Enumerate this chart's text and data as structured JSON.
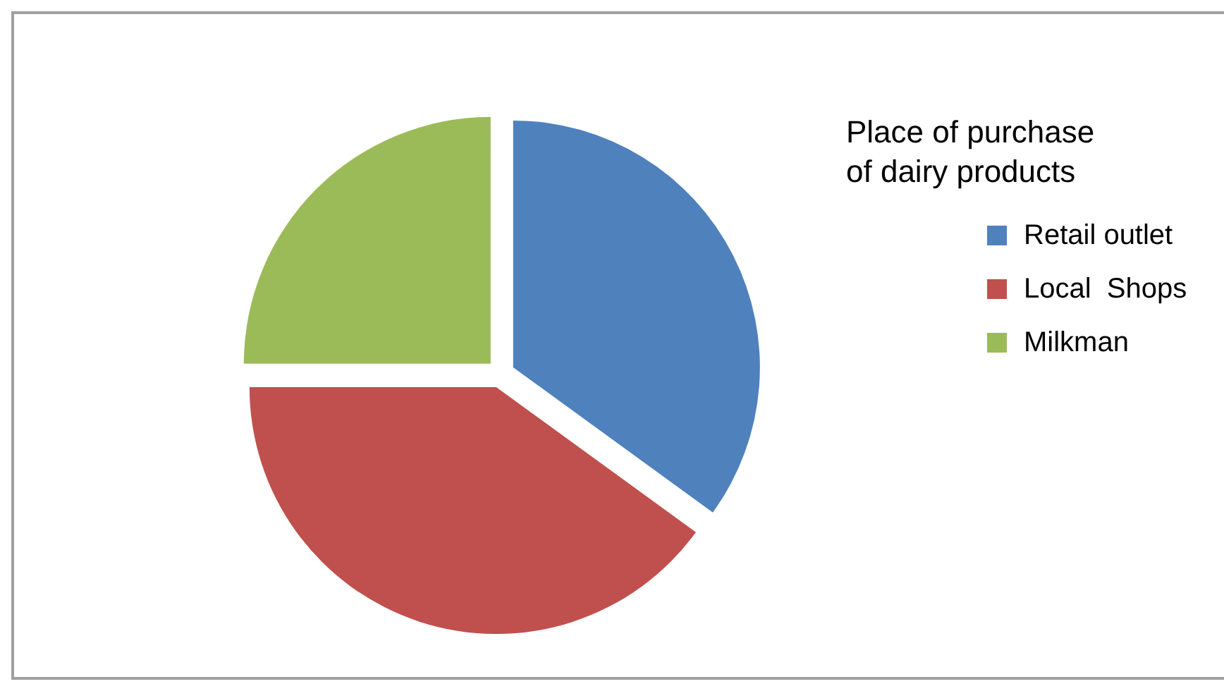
{
  "chart_data": {
    "type": "pie",
    "legend_title": "Place of purchase of dairy products",
    "categories": [
      "Retail outlet",
      "Local  Shops",
      "Milkman"
    ],
    "values": [
      35,
      40,
      25
    ],
    "colors": [
      "#4f81bd",
      "#c0504d",
      "#9bbb59"
    ],
    "legend": "right"
  }
}
